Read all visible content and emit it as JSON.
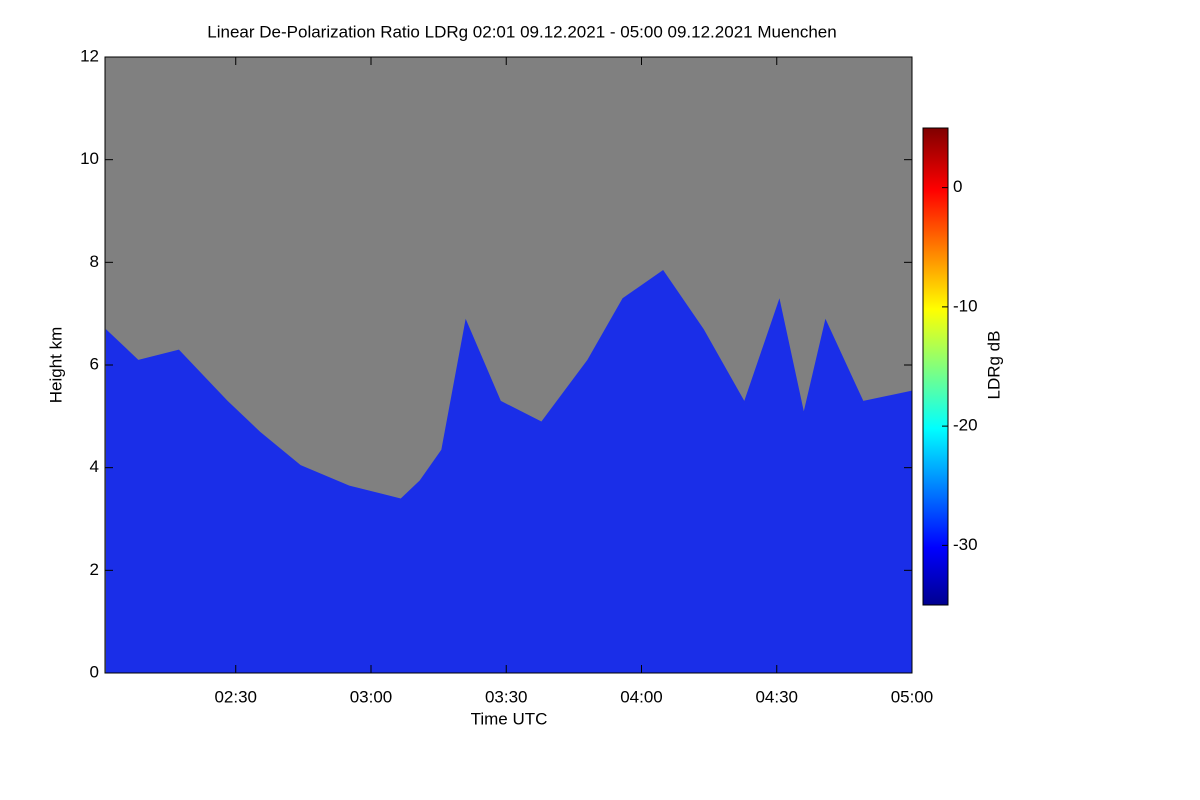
{
  "chart_data": {
    "type": "heatmap",
    "title": "Linear De-Polarization Ratio LDRg   02:01 09.12.2021 - 05:00 09.12.2021 Muenchen",
    "xlabel": "Time UTC",
    "ylabel": "Height km",
    "xlim": [
      2.0167,
      5.0
    ],
    "xticks": [
      {
        "value": 2.5,
        "label": "02:30"
      },
      {
        "value": 3.0,
        "label": "03:00"
      },
      {
        "value": 3.5,
        "label": "03:30"
      },
      {
        "value": 4.0,
        "label": "04:00"
      },
      {
        "value": 4.5,
        "label": "04:30"
      },
      {
        "value": 5.0,
        "label": "05:00"
      }
    ],
    "ylim": [
      0,
      12
    ],
    "yticks": [
      0,
      2,
      4,
      6,
      8,
      10,
      12
    ],
    "x": [
      2.02,
      2.14,
      2.29,
      2.47,
      2.59,
      2.74,
      2.92,
      3.11,
      3.18,
      3.26,
      3.35,
      3.48,
      3.63,
      3.8,
      3.93,
      4.08,
      4.23,
      4.38,
      4.51,
      4.6,
      4.68,
      4.82,
      5.0
    ],
    "values": [
      6.7,
      6.1,
      6.3,
      5.3,
      4.7,
      4.05,
      3.65,
      3.4,
      3.75,
      4.35,
      6.9,
      5.3,
      4.9,
      6.1,
      7.3,
      7.85,
      6.7,
      5.3,
      7.3,
      5.1,
      6.9,
      5.3,
      5.5
    ],
    "color": "#1a2ee8",
    "background": "#808080",
    "colorbar": {
      "label": "LDRg dB",
      "lim": [
        -35,
        5
      ],
      "ticks": [
        0,
        -10,
        -20,
        -30
      ]
    }
  }
}
